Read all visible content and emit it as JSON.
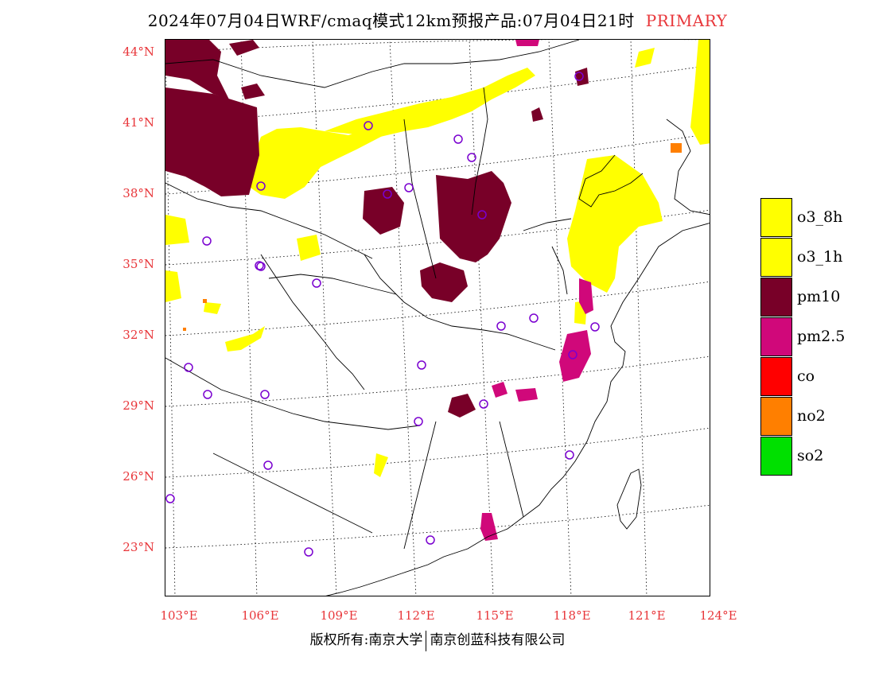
{
  "title": {
    "main": "2024年07月04日WRF/cmaq模式12km预报产品:07月04日21时",
    "tag": "PRIMARY"
  },
  "axes": {
    "lat_labels": [
      "44°N",
      "41°N",
      "38°N",
      "35°N",
      "32°N",
      "29°N",
      "26°N",
      "23°N"
    ],
    "lon_labels": [
      "103°E",
      "106°E",
      "109°E",
      "112°E",
      "115°E",
      "118°E",
      "121°E",
      "124°E"
    ]
  },
  "legend": {
    "items": [
      {
        "label": "o3_8h",
        "color": "#ffff00"
      },
      {
        "label": "o3_1h",
        "color": "#ffff00"
      },
      {
        "label": "pm10",
        "color": "#780028"
      },
      {
        "label": "pm2.5",
        "color": "#d0087a"
      },
      {
        "label": "co",
        "color": "#ff0000"
      },
      {
        "label": "no2",
        "color": "#ff7f00"
      },
      {
        "label": "so2",
        "color": "#00e000"
      }
    ]
  },
  "copyright": {
    "left": "版权所有:南京大学",
    "right": "南京创蓝科技有限公司"
  },
  "colors": {
    "o3": "#ffff00",
    "pm10": "#780028",
    "pm25": "#d0087a",
    "no2": "#ff7f00",
    "station": "#7a00d0",
    "axis_label": "#e8363a"
  }
}
